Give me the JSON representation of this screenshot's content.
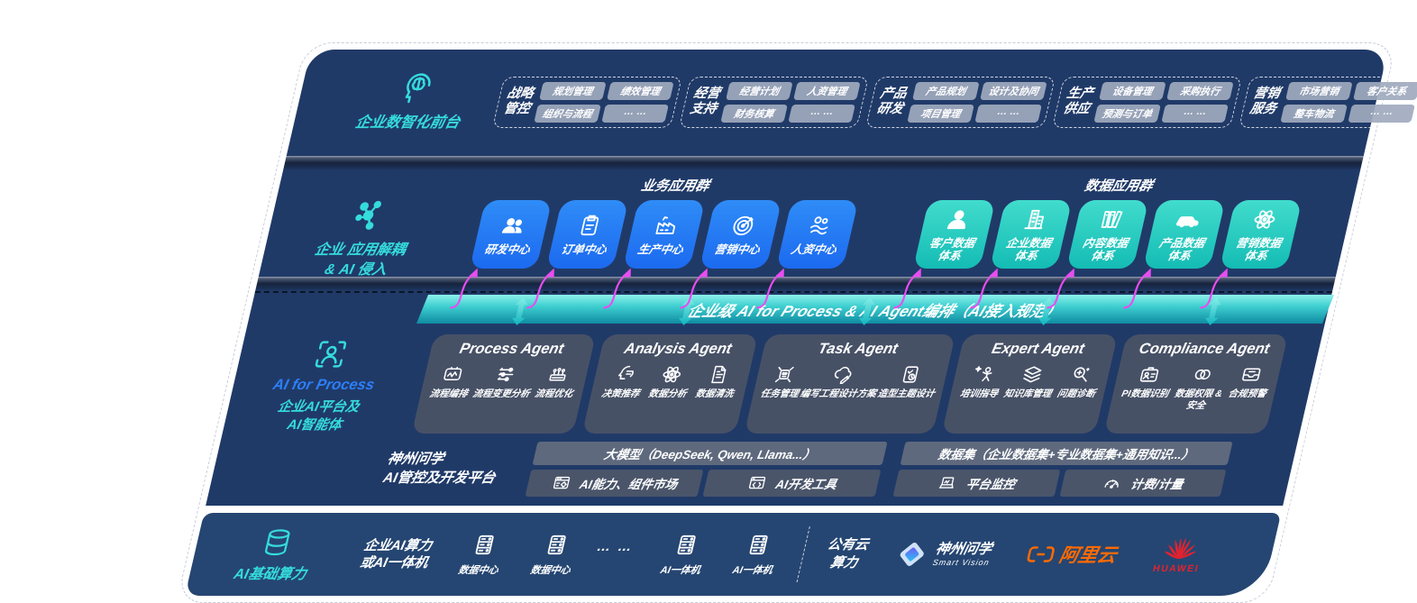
{
  "colors": {
    "band_navy": "#203a68",
    "infra_navy": "#254672",
    "accent_cyan": "#35dcdc",
    "accent_blue": "#2d7ff9",
    "box_blue": "#2478f2",
    "box_teal": "#1fc9be",
    "banner_teal": "#3ecfd0",
    "arrow_magenta": "#e84df0",
    "aliyun_orange": "#ff6a00",
    "huawei_red": "#e4222e"
  },
  "front_layer": {
    "title": "企业数智化前台",
    "icon": "brain",
    "groups": [
      {
        "name": "战略管控",
        "items": [
          "规划管理",
          "绩效管理",
          "组织与流程",
          "… …"
        ]
      },
      {
        "name": "经营支持",
        "items": [
          "经营计划",
          "人资管理",
          "财务核算",
          "… …"
        ]
      },
      {
        "name": "产品研发",
        "items": [
          "产品规划",
          "设计及协同",
          "项目管理",
          "… …"
        ]
      },
      {
        "name": "生产供应",
        "items": [
          "设备管理",
          "采购执行",
          "预测与订单",
          "… …"
        ]
      },
      {
        "name": "营销服务",
        "items": [
          "市场营销",
          "客户关系",
          "整车物流",
          "… …"
        ]
      }
    ]
  },
  "app_layer": {
    "title_line1": "企业 应用解耦",
    "title_line2": "& AI 侵入",
    "icon": "molecule",
    "business": {
      "heading": "业务应用群",
      "boxes": [
        {
          "label": "研发中心",
          "icon": "people"
        },
        {
          "label": "订单中心",
          "icon": "clipboard"
        },
        {
          "label": "生产中心",
          "icon": "factory"
        },
        {
          "label": "营销中心",
          "icon": "target"
        },
        {
          "label": "人资中心",
          "icon": "people-wave"
        }
      ]
    },
    "data": {
      "heading": "数据应用群",
      "boxes": [
        {
          "label": "客户数据体系",
          "icon": "person"
        },
        {
          "label": "企业数据体系",
          "icon": "building"
        },
        {
          "label": "内容数据体系",
          "icon": "books"
        },
        {
          "label": "产品数据体系",
          "icon": "car"
        },
        {
          "label": "营销数据体系",
          "icon": "atom"
        }
      ]
    }
  },
  "ai_layer": {
    "banner": "企业级 AI for Process & AI Agent编排（AI接入规范）",
    "title_line1": "AI for Process",
    "title_line2": "企业AI平台及",
    "title_line3": "AI智能体",
    "icon": "focus-person",
    "agents": [
      {
        "title": "Process Agent",
        "items": [
          {
            "label": "流程编排",
            "icon": "flow"
          },
          {
            "label": "流程变更分析",
            "icon": "sliders"
          },
          {
            "label": "流程优化",
            "icon": "machine"
          }
        ]
      },
      {
        "title": "Analysis Agent",
        "items": [
          {
            "label": "决策推荐",
            "icon": "head-chat"
          },
          {
            "label": "数据分析",
            "icon": "atom"
          },
          {
            "label": "数据清洗",
            "icon": "doc"
          }
        ]
      },
      {
        "title": "Task Agent",
        "items": [
          {
            "label": "任务管理",
            "icon": "robot"
          },
          {
            "label": "编写工程设计方案",
            "icon": "cloud-pen"
          },
          {
            "label": "造型主题设计",
            "icon": "tablet-check"
          }
        ]
      },
      {
        "title": "Expert Agent",
        "items": [
          {
            "label": "培训指导",
            "icon": "teach"
          },
          {
            "label": "知识库管理",
            "icon": "layers"
          },
          {
            "label": "问题诊断",
            "icon": "diagnose"
          }
        ]
      },
      {
        "title": "Compliance Agent",
        "items": [
          {
            "label": "PI数据识别",
            "icon": "id-card"
          },
          {
            "label": "数据权限 & 安全",
            "icon": "locks"
          },
          {
            "label": "合规预警",
            "icon": "inbox"
          }
        ]
      }
    ],
    "platform": {
      "title_line1": "神州问学",
      "title_line2": "AI管控及开发平台",
      "model_bar": "大模型（DeepSeek, Qwen, Llama...）",
      "model_cells": [
        {
          "label": "AI能力、组件市场",
          "icon": "market"
        },
        {
          "label": "AI开发工具",
          "icon": "devtools"
        }
      ],
      "data_bar": "数据集（企业数据集+专业数据集+通用知识...）",
      "data_cells": [
        {
          "label": "平台监控",
          "icon": "laptop"
        },
        {
          "label": "计费/计量",
          "icon": "gauge"
        }
      ]
    }
  },
  "infra_layer": {
    "title": "AI基础算力",
    "icon": "db",
    "compute_line1": "企业AI算力",
    "compute_line2": "或AI一体机",
    "nodes": [
      {
        "label": "数据中心",
        "icon": "server"
      },
      {
        "label": "数据中心",
        "icon": "server"
      }
    ],
    "dots": "… …",
    "nodes2": [
      {
        "label": "AI一体机",
        "icon": "server"
      },
      {
        "label": "AI一体机",
        "icon": "server"
      }
    ],
    "cloud_line1": "公有云",
    "cloud_line2": "算力",
    "logos": {
      "sv_name": "神州问学",
      "sv_sub": "Smart Vision",
      "aliyun": "阿里云",
      "huawei": "HUAWEI"
    }
  }
}
